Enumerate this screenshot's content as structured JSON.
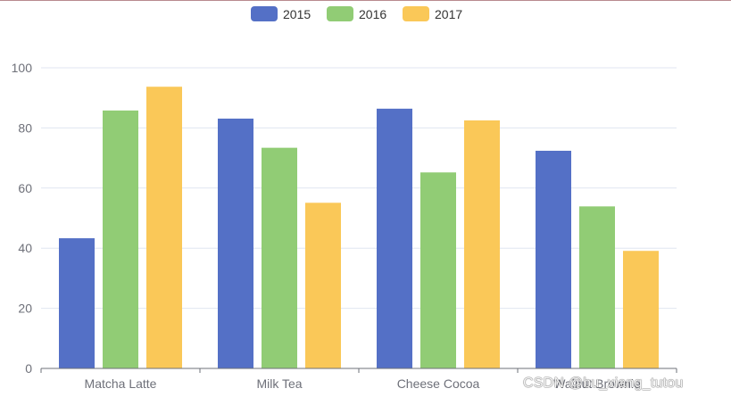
{
  "chart_data": {
    "type": "bar",
    "categories": [
      "Matcha Latte",
      "Milk Tea",
      "Cheese Cocoa",
      "Walnut Brownie"
    ],
    "series": [
      {
        "name": "2015",
        "color": "#5470c6",
        "values": [
          43.3,
          83.1,
          86.4,
          72.4
        ]
      },
      {
        "name": "2016",
        "color": "#91cc75",
        "values": [
          85.8,
          73.4,
          65.2,
          53.9
        ]
      },
      {
        "name": "2017",
        "color": "#fac858",
        "values": [
          93.7,
          55.1,
          82.5,
          39.1
        ]
      }
    ],
    "ylim": [
      0,
      100
    ],
    "yticks": [
      "0",
      "20",
      "40",
      "60",
      "80",
      "100"
    ],
    "grid": true,
    "legend": "top-center"
  },
  "watermark": "CSDN @bu_xiang_tutou"
}
